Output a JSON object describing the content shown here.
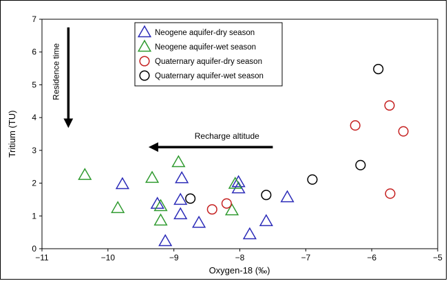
{
  "chart_data": {
    "type": "scatter",
    "title": "",
    "xlabel": "Oxygen-18 (‰)",
    "ylabel": "Tritium (TU)",
    "xlim": [
      -11,
      -5
    ],
    "ylim": [
      0,
      7
    ],
    "xticks": [
      -11,
      -10,
      -9,
      -8,
      -7,
      -6,
      -5
    ],
    "yticks": [
      0,
      1,
      2,
      3,
      4,
      5,
      6,
      7
    ],
    "grid": false,
    "legend_position": "top-center",
    "series": [
      {
        "name": "Neogene aquifer-dry season",
        "marker": "triangle",
        "color": "#2b2bb8",
        "points": [
          {
            "x": -9.78,
            "y": 1.97
          },
          {
            "x": -9.25,
            "y": 1.37
          },
          {
            "x": -9.13,
            "y": 0.23
          },
          {
            "x": -8.9,
            "y": 1.49
          },
          {
            "x": -8.88,
            "y": 2.15
          },
          {
            "x": -8.9,
            "y": 1.05
          },
          {
            "x": -8.62,
            "y": 0.79
          },
          {
            "x": -8.02,
            "y": 1.84
          },
          {
            "x": -8.02,
            "y": 2.03
          },
          {
            "x": -7.85,
            "y": 0.44
          },
          {
            "x": -7.6,
            "y": 0.84
          },
          {
            "x": -7.28,
            "y": 1.57
          }
        ]
      },
      {
        "name": "Neogene aquifer-wet season",
        "marker": "triangle",
        "color": "#2f9a2f",
        "points": [
          {
            "x": -10.35,
            "y": 2.25
          },
          {
            "x": -9.85,
            "y": 1.24
          },
          {
            "x": -9.33,
            "y": 2.16
          },
          {
            "x": -9.2,
            "y": 1.3
          },
          {
            "x": -9.2,
            "y": 0.86
          },
          {
            "x": -8.93,
            "y": 2.64
          },
          {
            "x": -8.12,
            "y": 1.17
          },
          {
            "x": -8.07,
            "y": 1.98
          }
        ]
      },
      {
        "name": "Quaternary aquifer-dry season",
        "marker": "circle",
        "color": "#c52020",
        "points": [
          {
            "x": -8.42,
            "y": 1.2
          },
          {
            "x": -8.2,
            "y": 1.38
          },
          {
            "x": -6.25,
            "y": 3.76
          },
          {
            "x": -5.73,
            "y": 4.37
          },
          {
            "x": -5.52,
            "y": 3.58
          },
          {
            "x": -5.72,
            "y": 1.68
          }
        ]
      },
      {
        "name": "Quaternary aquifer-wet season",
        "marker": "circle",
        "color": "#000000",
        "points": [
          {
            "x": -8.75,
            "y": 1.53
          },
          {
            "x": -7.6,
            "y": 1.64
          },
          {
            "x": -6.9,
            "y": 2.11
          },
          {
            "x": -6.17,
            "y": 2.55
          },
          {
            "x": -5.9,
            "y": 5.48
          }
        ]
      }
    ],
    "annotations": [
      {
        "text": "Residence time",
        "arrow": "down",
        "x": -10.6,
        "y_from": 6.75,
        "y_to": 3.75
      },
      {
        "text": "Recharge altitude",
        "arrow": "left",
        "y": 3.1,
        "x_from": -7.5,
        "x_to": -9.35
      }
    ]
  }
}
